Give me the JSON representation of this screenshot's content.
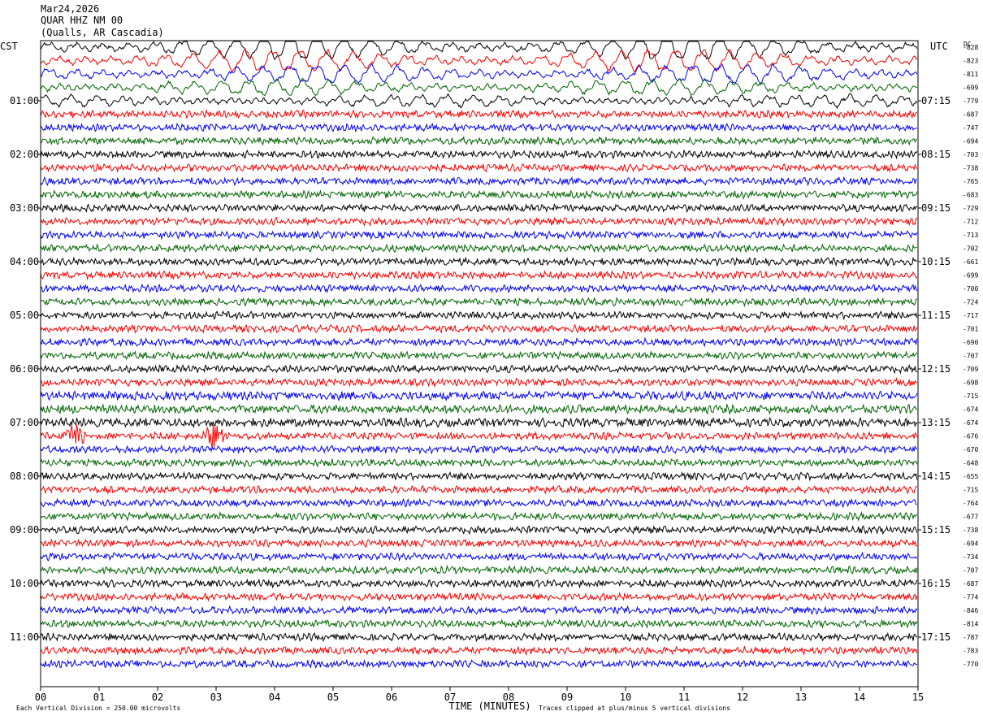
{
  "header": {
    "date": "Mar24,2026",
    "station": "QUAR HHZ NM 00",
    "location": "(Qualls, AR Cascadia)"
  },
  "chart_data": {
    "type": "helicorder",
    "title": "Mar24,2026",
    "left_timezone": "CST",
    "right_timezone": "UTC",
    "dc_label": "DC",
    "xlabel": "TIME (MINUTES)",
    "xlim": [
      0,
      15
    ],
    "x_ticks": [
      "00",
      "01",
      "02",
      "03",
      "04",
      "05",
      "06",
      "07",
      "08",
      "09",
      "10",
      "11",
      "12",
      "13",
      "14",
      "15"
    ],
    "left_hour_labels": [
      "01:00",
      "02:00",
      "03:00",
      "04:00",
      "05:00",
      "06:00",
      "07:00",
      "08:00",
      "09:00",
      "10:00",
      "11:00"
    ],
    "right_hour_labels": [
      "07:15",
      "08:15",
      "09:15",
      "10:15",
      "11:15",
      "12:15",
      "13:15",
      "14:15",
      "15:15",
      "16:15",
      "17:15"
    ],
    "trace_colors": [
      "#000000",
      "#ff0000",
      "#0000ff",
      "#006400"
    ],
    "dc_offsets": [
      "-828",
      "-823",
      "-811",
      "-699",
      "-779",
      "-687",
      "-747",
      "-694",
      "-703",
      "-738",
      "-765",
      "-683",
      "-729",
      "-712",
      "-713",
      "-702",
      "-661",
      "-699",
      "-700",
      "-724",
      "-717",
      "-701",
      "-690",
      "-707",
      "-709",
      "-698",
      "-715",
      "-674",
      "-674",
      "-676",
      "-670",
      "-648",
      "-655",
      "-715",
      "-764",
      "-677",
      "-738",
      "-694",
      "-734",
      "-707",
      "-687",
      "-774",
      "-846",
      "-814",
      "-787",
      "-783",
      "-770"
    ],
    "scale_note": "Each Vertical Division =  250.00 microvolts",
    "clip_note": "Traces clipped at plus/minus 5 vertical divisions",
    "events": [
      {
        "row": 29,
        "minute": 0.6,
        "amplitude": "large"
      },
      {
        "row": 29,
        "minute": 2.95,
        "amplitude": "large"
      }
    ]
  },
  "colors": {
    "background": "#ffffff",
    "frame": "#000000"
  }
}
